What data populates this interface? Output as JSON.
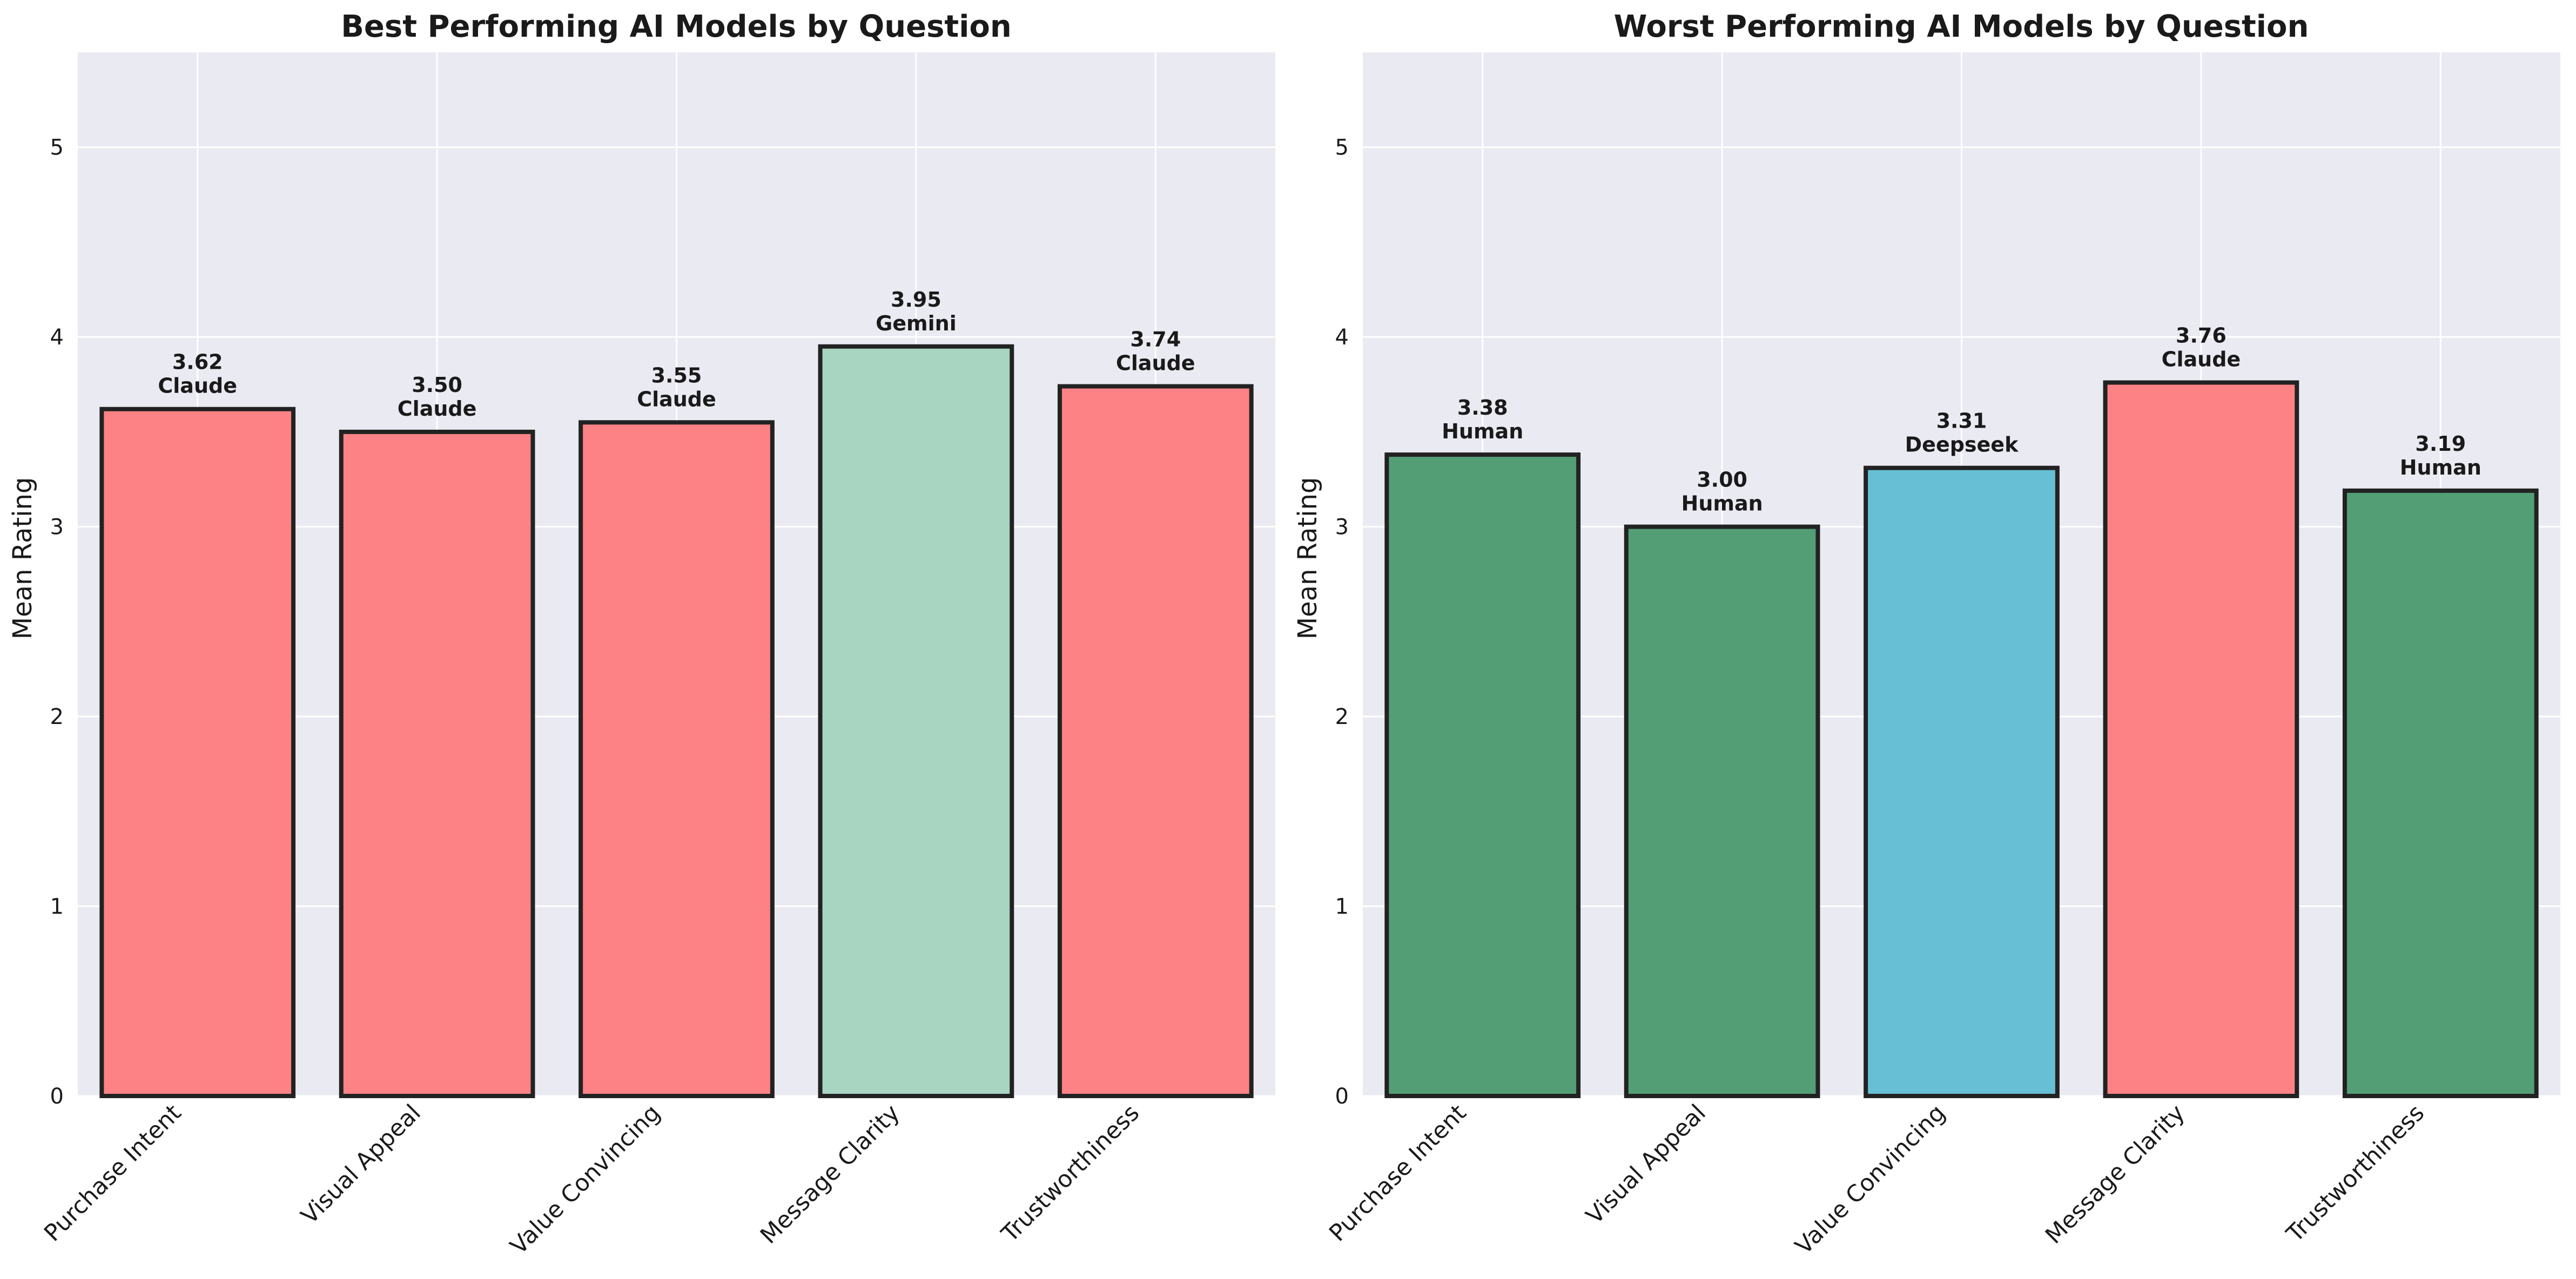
{
  "chart_data": [
    {
      "type": "bar",
      "title": "Best Performing AI Models by Question",
      "xlabel": "",
      "ylabel": "Mean Rating",
      "ylim": [
        0,
        5.5
      ],
      "yticks": [
        0,
        1,
        2,
        3,
        4,
        5
      ],
      "grid": true,
      "categories": [
        "Purchase Intent",
        "Visual Appeal",
        "Value Convincing",
        "Message Clarity",
        "Trustworthiness"
      ],
      "values": [
        3.62,
        3.5,
        3.55,
        3.95,
        3.74
      ],
      "value_labels": [
        "3.62",
        "3.50",
        "3.55",
        "3.95",
        "3.74"
      ],
      "models": [
        "Claude",
        "Claude",
        "Claude",
        "Gemini",
        "Claude"
      ],
      "colors": [
        "#fd8285",
        "#fd8285",
        "#fd8285",
        "#a8d4c2",
        "#fd8285"
      ]
    },
    {
      "type": "bar",
      "title": "Worst Performing AI Models by Question",
      "xlabel": "",
      "ylabel": "Mean Rating",
      "ylim": [
        0,
        5.5
      ],
      "yticks": [
        0,
        1,
        2,
        3,
        4,
        5
      ],
      "grid": true,
      "categories": [
        "Purchase Intent",
        "Visual Appeal",
        "Value Convincing",
        "Message Clarity",
        "Trustworthiness"
      ],
      "values": [
        3.38,
        3.0,
        3.31,
        3.76,
        3.19
      ],
      "value_labels": [
        "3.38",
        "3.00",
        "3.31",
        "3.76",
        "3.19"
      ],
      "models": [
        "Human",
        "Human",
        "Deepseek",
        "Claude",
        "Human"
      ],
      "colors": [
        "#539e75",
        "#539e75",
        "#66bfd4",
        "#fd8285",
        "#539e75"
      ]
    }
  ]
}
